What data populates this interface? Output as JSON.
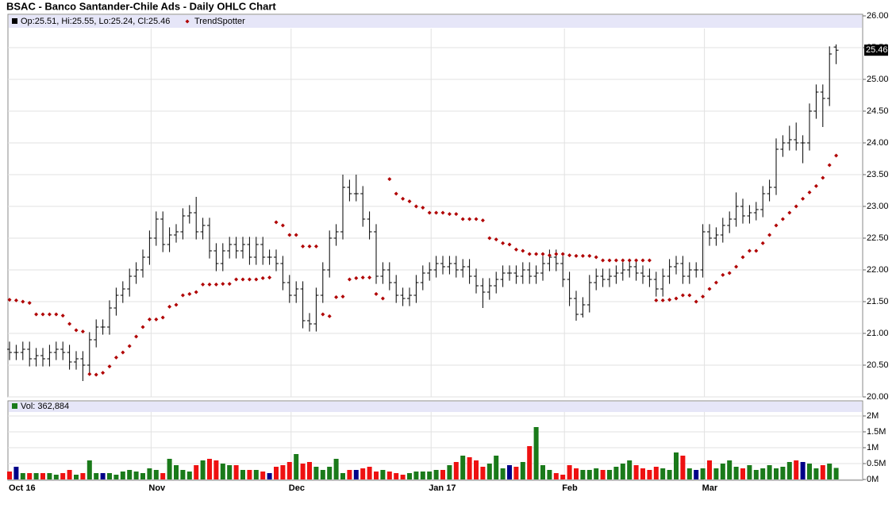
{
  "chart_data": [
    {
      "type": "ohlc",
      "title": "BSAC - Banco Santander-Chile Ads - Daily OHLC Chart",
      "ohlc_name": "Op:25.51, Hi:25.55, Lo:25.24, Cl:25.46",
      "color": "#000000",
      "open": [
        20.75,
        20.7,
        20.7,
        20.75,
        20.6,
        20.65,
        20.6,
        20.7,
        20.75,
        20.7,
        20.55,
        20.6,
        20.5,
        20.9,
        21.1,
        21.1,
        21.4,
        21.6,
        21.7,
        21.9,
        22.0,
        22.2,
        22.5,
        22.8,
        22.4,
        22.55,
        22.6,
        22.85,
        22.9,
        22.6,
        22.7,
        22.3,
        22.1,
        22.3,
        22.4,
        22.3,
        22.4,
        22.2,
        22.4,
        22.2,
        22.2,
        22.1,
        21.8,
        21.6,
        21.7,
        21.2,
        21.15,
        21.6,
        22.0,
        22.5,
        22.6,
        23.3,
        23.2,
        23.2,
        22.8,
        22.6,
        21.9,
        22.0,
        21.8,
        21.6,
        21.55,
        21.6,
        21.8,
        21.95,
        22.0,
        22.1,
        22.05,
        22.1,
        22.0,
        22.05,
        21.9,
        21.75,
        21.65,
        21.75,
        21.85,
        21.95,
        21.95,
        21.9,
        22.0,
        21.9,
        21.95,
        22.1,
        22.2,
        22.1,
        21.85,
        21.55,
        21.3,
        21.45,
        21.8,
        21.9,
        21.85,
        21.9,
        21.95,
        22.0,
        22.05,
        21.95,
        21.9,
        21.85,
        21.7,
        21.9,
        22.05,
        22.1,
        21.9,
        22.0,
        22.0,
        22.6,
        22.5,
        22.55,
        22.7,
        22.8,
        23.0,
        22.85,
        22.9,
        22.95,
        23.2,
        23.3,
        23.9,
        24.0,
        24.05,
        24.0,
        24.0,
        24.5,
        24.8,
        24.7,
        25.51
      ],
      "high": [
        20.87,
        20.82,
        20.87,
        20.87,
        20.77,
        20.77,
        20.82,
        20.87,
        20.87,
        20.82,
        20.72,
        20.72,
        21.02,
        21.22,
        21.22,
        21.52,
        21.72,
        21.82,
        22.02,
        22.12,
        22.32,
        22.62,
        22.92,
        22.92,
        22.67,
        22.72,
        22.97,
        23.02,
        23.15,
        22.82,
        22.82,
        22.42,
        22.42,
        22.52,
        22.52,
        22.52,
        22.52,
        22.52,
        22.52,
        22.32,
        22.32,
        22.22,
        21.92,
        21.82,
        21.82,
        21.32,
        21.72,
        22.12,
        22.62,
        22.72,
        23.5,
        23.42,
        23.5,
        23.32,
        22.92,
        22.72,
        22.12,
        22.12,
        21.92,
        21.72,
        21.72,
        21.92,
        22.07,
        22.12,
        22.22,
        22.22,
        22.22,
        22.22,
        22.17,
        22.17,
        22.02,
        21.87,
        21.87,
        21.97,
        22.07,
        22.07,
        22.07,
        22.12,
        22.12,
        22.07,
        22.22,
        22.32,
        22.32,
        22.22,
        21.97,
        21.67,
        21.57,
        21.92,
        22.02,
        22.02,
        22.02,
        22.07,
        22.12,
        22.17,
        22.17,
        22.07,
        22.02,
        21.97,
        22.02,
        22.17,
        22.22,
        22.22,
        22.12,
        22.12,
        22.72,
        22.72,
        22.67,
        22.82,
        22.92,
        23.22,
        23.12,
        23.02,
        23.07,
        23.32,
        23.42,
        24.07,
        24.12,
        24.27,
        24.32,
        24.12,
        24.62,
        24.92,
        24.92,
        25.52,
        25.55
      ],
      "low": [
        20.58,
        20.58,
        20.58,
        20.48,
        20.48,
        20.48,
        20.48,
        20.58,
        20.58,
        20.43,
        20.43,
        20.25,
        20.38,
        20.78,
        20.98,
        20.98,
        21.28,
        21.48,
        21.58,
        21.78,
        21.88,
        22.08,
        22.38,
        22.28,
        22.28,
        22.43,
        22.48,
        22.73,
        22.48,
        22.48,
        22.18,
        21.98,
        21.98,
        22.18,
        22.18,
        22.18,
        22.08,
        22.08,
        22.08,
        22.08,
        21.98,
        21.68,
        21.48,
        21.48,
        21.08,
        21.03,
        21.03,
        21.48,
        21.88,
        22.38,
        22.48,
        23.08,
        23.08,
        22.68,
        22.48,
        21.78,
        21.78,
        21.68,
        21.48,
        21.43,
        21.43,
        21.48,
        21.68,
        21.83,
        21.88,
        21.93,
        21.93,
        21.88,
        21.88,
        21.78,
        21.63,
        21.4,
        21.53,
        21.63,
        21.73,
        21.83,
        21.78,
        21.78,
        21.78,
        21.78,
        21.83,
        21.98,
        21.98,
        21.73,
        21.43,
        21.2,
        21.25,
        21.33,
        21.68,
        21.73,
        21.73,
        21.78,
        21.83,
        21.88,
        21.83,
        21.78,
        21.73,
        21.58,
        21.58,
        21.78,
        21.93,
        21.78,
        21.78,
        21.88,
        21.88,
        22.38,
        22.38,
        22.43,
        22.58,
        22.68,
        22.73,
        22.73,
        22.78,
        22.83,
        23.08,
        23.18,
        23.78,
        23.88,
        23.88,
        23.68,
        23.88,
        24.38,
        24.25,
        24.58,
        25.24
      ],
      "close": [
        20.7,
        20.7,
        20.75,
        20.6,
        20.65,
        20.6,
        20.7,
        20.75,
        20.7,
        20.55,
        20.6,
        20.5,
        20.9,
        21.1,
        21.1,
        21.4,
        21.6,
        21.7,
        21.9,
        22.0,
        22.2,
        22.5,
        22.8,
        22.4,
        22.55,
        22.6,
        22.85,
        22.9,
        22.6,
        22.7,
        22.3,
        22.1,
        22.3,
        22.4,
        22.3,
        22.4,
        22.2,
        22.4,
        22.2,
        22.2,
        22.1,
        21.8,
        21.6,
        21.7,
        21.2,
        21.15,
        21.6,
        22.0,
        22.5,
        22.6,
        23.3,
        23.2,
        23.2,
        22.8,
        22.6,
        21.9,
        22.0,
        21.8,
        21.6,
        21.55,
        21.6,
        21.8,
        21.95,
        22.0,
        22.1,
        22.05,
        22.1,
        22.0,
        22.05,
        21.9,
        21.75,
        21.65,
        21.75,
        21.85,
        21.95,
        21.95,
        21.9,
        22.0,
        21.9,
        21.95,
        22.1,
        22.2,
        22.1,
        21.85,
        21.55,
        21.3,
        21.45,
        21.8,
        21.9,
        21.85,
        21.9,
        21.95,
        22.0,
        22.05,
        21.95,
        21.9,
        21.85,
        21.7,
        21.9,
        22.05,
        22.1,
        21.9,
        22.0,
        22.0,
        22.6,
        22.5,
        22.55,
        22.7,
        22.8,
        23.0,
        22.85,
        22.9,
        22.95,
        23.2,
        23.3,
        23.9,
        24.0,
        24.05,
        24.0,
        24.0,
        24.5,
        24.8,
        24.7,
        25.4,
        25.46
      ],
      "series": [
        {
          "name": "TrendSpotter",
          "color": "#b00000",
          "values": [
            21.53,
            21.52,
            21.5,
            21.48,
            21.3,
            21.3,
            21.3,
            21.3,
            21.28,
            21.15,
            21.05,
            21.03,
            20.36,
            20.35,
            20.38,
            20.48,
            20.62,
            20.7,
            20.8,
            20.95,
            21.1,
            21.22,
            21.22,
            21.25,
            21.42,
            21.45,
            21.6,
            21.62,
            21.65,
            21.77,
            21.77,
            21.77,
            21.78,
            21.78,
            21.85,
            21.85,
            21.85,
            21.85,
            21.87,
            21.88,
            22.75,
            22.7,
            22.55,
            22.55,
            22.37,
            22.37,
            22.37,
            21.3,
            21.27,
            21.57,
            21.58,
            21.85,
            21.87,
            21.88,
            21.88,
            21.62,
            21.55,
            23.43,
            23.2,
            23.12,
            23.08,
            23.0,
            22.98,
            22.9,
            22.9,
            22.9,
            22.88,
            22.88,
            22.8,
            22.8,
            22.8,
            22.78,
            22.5,
            22.48,
            22.42,
            22.4,
            22.32,
            22.3,
            22.25,
            22.25,
            22.25,
            22.23,
            22.25,
            22.25,
            22.23,
            22.22,
            22.22,
            22.22,
            22.2,
            22.15,
            22.15,
            22.15,
            22.15,
            22.15,
            22.15,
            22.15,
            22.15,
            21.52,
            21.52,
            21.53,
            21.55,
            21.6,
            21.6,
            21.5,
            21.58,
            21.7,
            21.8,
            21.92,
            21.95,
            22.05,
            22.2,
            22.3,
            22.3,
            22.42,
            22.55,
            22.7,
            22.8,
            22.9,
            23.0,
            23.12,
            23.22,
            23.32,
            23.45,
            23.65,
            23.8
          ]
        }
      ],
      "ylim": [
        20,
        26
      ],
      "yticks": [
        {
          "value": 20,
          "label": "20.00"
        },
        {
          "value": 20.5,
          "label": "20.50"
        },
        {
          "value": 21,
          "label": "21.00"
        },
        {
          "value": 21.5,
          "label": "21.50"
        },
        {
          "value": 22,
          "label": "22.00"
        },
        {
          "value": 22.5,
          "label": "22.50"
        },
        {
          "value": 23,
          "label": "23.00"
        },
        {
          "value": 23.5,
          "label": "23.50"
        },
        {
          "value": 24,
          "label": "24.00"
        },
        {
          "value": 24.5,
          "label": "24.50"
        },
        {
          "value": 25,
          "label": "25.00"
        },
        {
          "value": 25.5,
          "label": "25.50"
        },
        {
          "value": 26,
          "label": "26.00"
        }
      ],
      "grid": true
    },
    {
      "type": "bar",
      "name": "Vol: 362,884",
      "up_color": "#1a7a1a",
      "down_color": "#ee1111",
      "flat_color": "#000088",
      "categories": [
        "Oct 16",
        null,
        null,
        null,
        null,
        null,
        null,
        null,
        null,
        null,
        null,
        null,
        null,
        null,
        null,
        null,
        null,
        null,
        null,
        null,
        null,
        "Nov",
        null,
        null,
        null,
        null,
        null,
        null,
        null,
        null,
        null,
        null,
        null,
        null,
        null,
        null,
        null,
        null,
        null,
        null,
        null,
        null,
        "Dec",
        null,
        null,
        null,
        null,
        null,
        null,
        null,
        null,
        null,
        null,
        null,
        null,
        null,
        null,
        null,
        null,
        null,
        null,
        null,
        null,
        "Jan 17",
        null,
        null,
        null,
        null,
        null,
        null,
        null,
        null,
        null,
        null,
        null,
        null,
        null,
        null,
        null,
        null,
        null,
        null,
        null,
        "Feb",
        null,
        null,
        null,
        null,
        null,
        null,
        null,
        null,
        null,
        null,
        null,
        null,
        null,
        null,
        null,
        null,
        null,
        null,
        null,
        null,
        "Mar",
        null,
        null,
        null,
        null,
        null,
        null,
        null,
        null,
        null,
        null,
        null,
        null,
        null,
        null,
        null,
        null,
        null,
        null,
        null,
        null
      ],
      "values": [
        0.25,
        0.4,
        0.2,
        0.2,
        0.2,
        0.2,
        0.2,
        0.15,
        0.2,
        0.3,
        0.15,
        0.2,
        0.6,
        0.2,
        0.2,
        0.2,
        0.15,
        0.25,
        0.3,
        0.25,
        0.2,
        0.35,
        0.3,
        0.2,
        0.65,
        0.45,
        0.3,
        0.25,
        0.45,
        0.6,
        0.65,
        0.6,
        0.5,
        0.45,
        0.45,
        0.3,
        0.3,
        0.3,
        0.25,
        0.2,
        0.4,
        0.45,
        0.55,
        0.8,
        0.5,
        0.55,
        0.4,
        0.3,
        0.4,
        0.65,
        0.2,
        0.3,
        0.3,
        0.35,
        0.4,
        0.25,
        0.3,
        0.25,
        0.2,
        0.15,
        0.2,
        0.25,
        0.25,
        0.25,
        0.3,
        0.3,
        0.45,
        0.55,
        0.75,
        0.7,
        0.6,
        0.4,
        0.5,
        0.75,
        0.35,
        0.45,
        0.4,
        0.55,
        1.05,
        1.65,
        0.45,
        0.3,
        0.2,
        0.15,
        0.45,
        0.35,
        0.3,
        0.3,
        0.35,
        0.3,
        0.3,
        0.4,
        0.5,
        0.6,
        0.45,
        0.35,
        0.3,
        0.4,
        0.35,
        0.3,
        0.85,
        0.75,
        0.35,
        0.3,
        0.35,
        0.6,
        0.35,
        0.5,
        0.6,
        0.4,
        0.35,
        0.45,
        0.3,
        0.35,
        0.45,
        0.35,
        0.4,
        0.55,
        0.6,
        0.55,
        0.5,
        0.35,
        0.45,
        0.5,
        0.362884
      ],
      "ylim": [
        0,
        2
      ],
      "yticks": [
        {
          "value": 0,
          "label": "0M"
        },
        {
          "value": 0.5,
          "label": "0.5M"
        },
        {
          "value": 1,
          "label": "1M"
        },
        {
          "value": 1.5,
          "label": "1.5M"
        },
        {
          "value": 2,
          "label": "2M"
        }
      ],
      "grid": true
    }
  ]
}
